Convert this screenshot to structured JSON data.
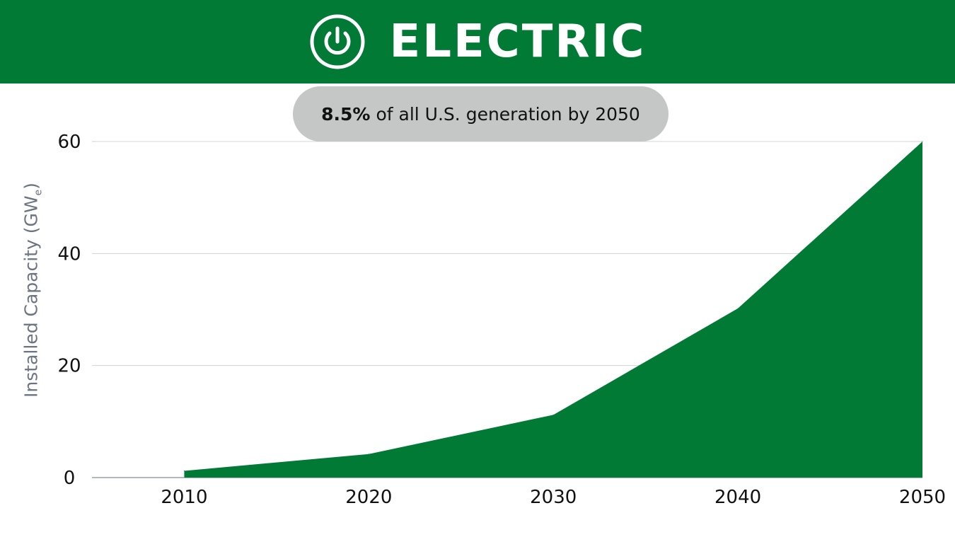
{
  "header": {
    "title": "ELECTRIC",
    "icon": "power-icon"
  },
  "callout": {
    "value": "8.5%",
    "text": "of all U.S. generation by 2050"
  },
  "colors": {
    "brand_green": "#017a36",
    "pill_gray": "#c4c7c6",
    "axis_label": "#6b7582",
    "grid": "#cfd3d6"
  },
  "chart_data": {
    "type": "area",
    "title": "",
    "xlabel": "",
    "ylabel": "Installed Capacity (GWe)",
    "ylabel_main": "Installed Capacity (GW",
    "ylabel_sub": "e",
    "ylabel_close": ")",
    "x": [
      2010,
      2020,
      2030,
      2040,
      2050
    ],
    "series": [
      {
        "values": [
          1.2,
          4.2,
          11.2,
          30.2,
          60
        ]
      }
    ],
    "xlim": [
      2005,
      2050
    ],
    "ylim": [
      0,
      60
    ],
    "xticks": [
      "2010",
      "2020",
      "2030",
      "2040",
      "2050"
    ],
    "yticks": [
      "0",
      "20",
      "40",
      "60"
    ],
    "grid": true,
    "legend": "none"
  }
}
